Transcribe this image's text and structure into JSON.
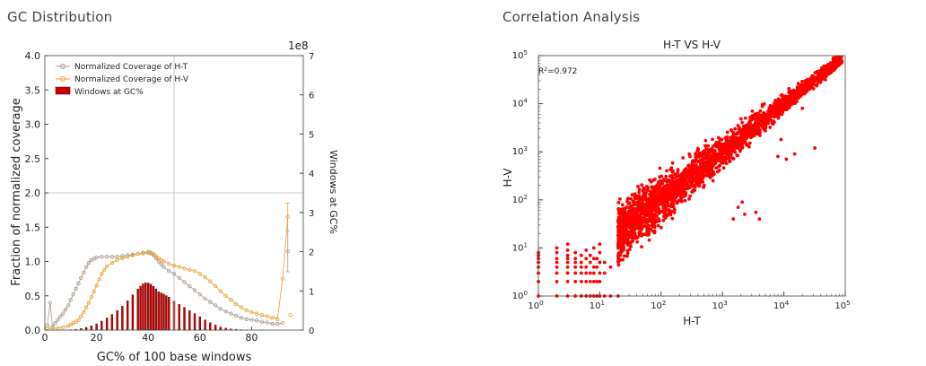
{
  "panels": {
    "left_title": "GC Distribution",
    "right_title": "Correlation Analysis"
  },
  "chart_data": [
    {
      "type": "bar+line",
      "xlabel": "GC% of 100 base windows",
      "ylabel": "Fraction of normalized coverage",
      "ylabel_right": "Windows at GC%",
      "right_axis_multiplier": "1e8",
      "xlim": [
        0,
        100
      ],
      "ylim": [
        0,
        4.0
      ],
      "ylim_right": [
        0,
        7
      ],
      "x_ticks": [
        "0",
        "20",
        "40",
        "60",
        "80"
      ],
      "y_ticks": [
        "0.0",
        "0.5",
        "1.0",
        "1.5",
        "2.0",
        "2.5",
        "3.0",
        "3.5",
        "4.0"
      ],
      "y_right_ticks": [
        "0",
        "1",
        "2",
        "3",
        "4",
        "5",
        "6",
        "7"
      ],
      "reference_lines": {
        "vertical_x": 50,
        "horizontal_y": 2.0
      },
      "legend": {
        "position": "top-left",
        "entries": [
          "Normalized Coverage of H-T",
          "Normalized Coverage of H-V",
          "Windows at GC%"
        ]
      },
      "colors": {
        "ht": "#a89a8e",
        "hv": "#e8a030",
        "bars": "#c40000"
      },
      "windows_at_gc": [
        [
          6,
          0.002
        ],
        [
          8,
          0.005
        ],
        [
          10,
          0.01
        ],
        [
          12,
          0.02
        ],
        [
          14,
          0.04
        ],
        [
          16,
          0.07
        ],
        [
          18,
          0.11
        ],
        [
          20,
          0.16
        ],
        [
          22,
          0.23
        ],
        [
          24,
          0.31
        ],
        [
          26,
          0.4
        ],
        [
          28,
          0.5
        ],
        [
          30,
          0.61
        ],
        [
          32,
          0.75
        ],
        [
          34,
          0.9
        ],
        [
          36,
          1.05
        ],
        [
          37,
          1.12
        ],
        [
          38,
          1.18
        ],
        [
          39,
          1.21
        ],
        [
          40,
          1.2
        ],
        [
          41,
          1.17
        ],
        [
          42,
          1.12
        ],
        [
          43,
          1.05
        ],
        [
          44,
          0.98
        ],
        [
          45,
          0.95
        ],
        [
          46,
          0.92
        ],
        [
          47,
          0.88
        ],
        [
          48,
          0.84
        ],
        [
          50,
          0.74
        ],
        [
          52,
          0.66
        ],
        [
          54,
          0.58
        ],
        [
          56,
          0.5
        ],
        [
          58,
          0.42
        ],
        [
          60,
          0.34
        ],
        [
          62,
          0.26
        ],
        [
          64,
          0.19
        ],
        [
          66,
          0.13
        ],
        [
          68,
          0.08
        ],
        [
          70,
          0.05
        ],
        [
          72,
          0.03
        ],
        [
          74,
          0.02
        ],
        [
          76,
          0.01
        ],
        [
          78,
          0.005
        ]
      ],
      "series": [
        {
          "name": "Normalized Coverage of H-T",
          "points": [
            [
              1,
              0.07
            ],
            [
              2,
              0.4
            ],
            [
              3,
              0.05
            ],
            [
              4,
              0.1
            ],
            [
              5,
              0.15
            ],
            [
              6,
              0.2
            ],
            [
              7,
              0.24
            ],
            [
              8,
              0.3
            ],
            [
              9,
              0.36
            ],
            [
              10,
              0.44
            ],
            [
              11,
              0.52
            ],
            [
              12,
              0.6
            ],
            [
              13,
              0.68
            ],
            [
              14,
              0.76
            ],
            [
              15,
              0.84
            ],
            [
              16,
              0.92
            ],
            [
              17,
              0.98
            ],
            [
              18,
              1.02
            ],
            [
              19,
              1.04
            ],
            [
              20,
              1.06
            ],
            [
              22,
              1.07
            ],
            [
              24,
              1.07
            ],
            [
              26,
              1.07
            ],
            [
              28,
              1.07
            ],
            [
              30,
              1.08
            ],
            [
              32,
              1.09
            ],
            [
              34,
              1.1
            ],
            [
              36,
              1.11
            ],
            [
              38,
              1.12
            ],
            [
              40,
              1.13
            ],
            [
              41,
              1.12
            ],
            [
              42,
              1.09
            ],
            [
              43,
              1.05
            ],
            [
              44,
              1.0
            ],
            [
              45,
              0.96
            ],
            [
              46,
              0.92
            ],
            [
              48,
              0.86
            ],
            [
              50,
              0.82
            ],
            [
              52,
              0.76
            ],
            [
              54,
              0.7
            ],
            [
              56,
              0.64
            ],
            [
              58,
              0.58
            ],
            [
              60,
              0.52
            ],
            [
              62,
              0.46
            ],
            [
              64,
              0.41
            ],
            [
              66,
              0.36
            ],
            [
              68,
              0.31
            ],
            [
              70,
              0.27
            ],
            [
              72,
              0.24
            ],
            [
              74,
              0.21
            ],
            [
              76,
              0.18
            ],
            [
              78,
              0.16
            ],
            [
              80,
              0.15
            ],
            [
              82,
              0.14
            ],
            [
              84,
              0.12
            ],
            [
              86,
              0.11
            ],
            [
              88,
              0.09
            ],
            [
              90,
              0.09
            ],
            [
              92,
              0.1
            ],
            [
              94,
              1.15
            ]
          ]
        },
        {
          "name": "Normalized Coverage of H-V",
          "points": [
            [
              1,
              0.03
            ],
            [
              3,
              0.02
            ],
            [
              5,
              0.03
            ],
            [
              7,
              0.04
            ],
            [
              9,
              0.06
            ],
            [
              10,
              0.08
            ],
            [
              11,
              0.1
            ],
            [
              12,
              0.12
            ],
            [
              13,
              0.15
            ],
            [
              14,
              0.2
            ],
            [
              15,
              0.26
            ],
            [
              16,
              0.33
            ],
            [
              17,
              0.4
            ],
            [
              18,
              0.48
            ],
            [
              19,
              0.56
            ],
            [
              20,
              0.65
            ],
            [
              21,
              0.74
            ],
            [
              22,
              0.82
            ],
            [
              23,
              0.88
            ],
            [
              24,
              0.93
            ],
            [
              26,
              0.98
            ],
            [
              28,
              1.02
            ],
            [
              30,
              1.05
            ],
            [
              32,
              1.07
            ],
            [
              34,
              1.09
            ],
            [
              36,
              1.11
            ],
            [
              38,
              1.13
            ],
            [
              40,
              1.14
            ],
            [
              41,
              1.13
            ],
            [
              42,
              1.11
            ],
            [
              43,
              1.08
            ],
            [
              44,
              1.05
            ],
            [
              45,
              1.02
            ],
            [
              46,
              1.0
            ],
            [
              48,
              0.97
            ],
            [
              50,
              0.94
            ],
            [
              52,
              0.92
            ],
            [
              54,
              0.9
            ],
            [
              56,
              0.88
            ],
            [
              58,
              0.86
            ],
            [
              60,
              0.82
            ],
            [
              62,
              0.77
            ],
            [
              64,
              0.71
            ],
            [
              66,
              0.64
            ],
            [
              68,
              0.57
            ],
            [
              70,
              0.5
            ],
            [
              72,
              0.44
            ],
            [
              74,
              0.38
            ],
            [
              76,
              0.33
            ],
            [
              78,
              0.29
            ],
            [
              80,
              0.26
            ],
            [
              82,
              0.24
            ],
            [
              84,
              0.22
            ],
            [
              86,
              0.2
            ],
            [
              88,
              0.18
            ],
            [
              90,
              0.16
            ],
            [
              92,
              0.75
            ],
            [
              94,
              1.65
            ],
            [
              95,
              0.22
            ]
          ]
        }
      ]
    },
    {
      "type": "scatter",
      "title": "H-T VS H-V",
      "xlabel": "H-T",
      "ylabel": "H-V",
      "xscale": "log",
      "yscale": "log",
      "xlim": [
        1,
        100000
      ],
      "ylim": [
        1,
        100000
      ],
      "x_ticks": [
        "10",
        "10",
        "10",
        "10",
        "10",
        "10"
      ],
      "x_tick_exponents": [
        "0",
        "1",
        "2",
        "3",
        "4",
        "5"
      ],
      "y_ticks": [
        "10",
        "10",
        "10",
        "10",
        "10",
        "10"
      ],
      "y_tick_exponents": [
        "0",
        "1",
        "2",
        "3",
        "4",
        "5"
      ],
      "annotation_base": "R",
      "annotation_exponent": "2",
      "annotation_value": "=0.972",
      "marker_color": "#ff0000",
      "grid": false,
      "outliers": [
        [
          8000,
          800
        ],
        [
          11000,
          700
        ],
        [
          32000,
          1200
        ],
        [
          15000,
          900
        ],
        [
          700,
          250
        ],
        [
          400,
          200
        ],
        [
          1800,
          70
        ],
        [
          2100,
          90
        ],
        [
          2300,
          50
        ],
        [
          4000,
          40
        ],
        [
          3500,
          55
        ],
        [
          1500,
          40
        ],
        [
          9000,
          1800
        ],
        [
          20000,
          8000
        ]
      ]
    }
  ]
}
